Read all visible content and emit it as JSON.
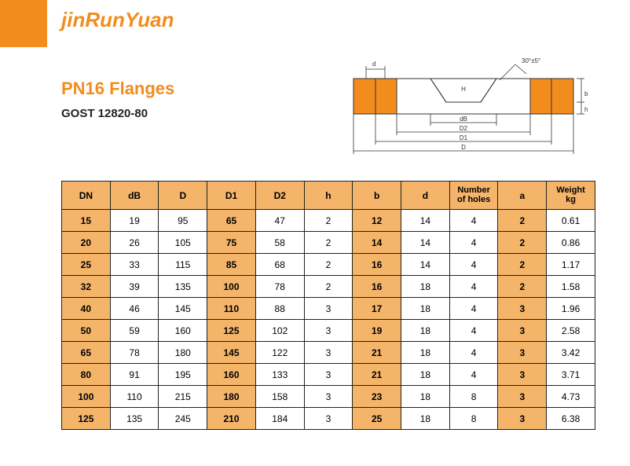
{
  "brand": {
    "logo_text": "jinRunYuan"
  },
  "heading": {
    "title": "PN16 Flanges",
    "subtitle": "GOST 12820-80"
  },
  "colors": {
    "accent": "#f28c1d",
    "header_fill": "#f4b46a",
    "border": "#222222",
    "background": "#ffffff"
  },
  "diagram": {
    "labels": {
      "d_top": "d",
      "angle": "30°±5°",
      "dB": "dB",
      "D2": "D2",
      "D1": "D1",
      "D": "D",
      "H": "H",
      "b": "b",
      "h": "h"
    },
    "flange_fill": "#f28c1d",
    "line_color": "#333333"
  },
  "table": {
    "columns": [
      "DN",
      "dB",
      "D",
      "D1",
      "D2",
      "h",
      "b",
      "d",
      "Number\nof holes",
      "a",
      "Weight\nkg"
    ],
    "shaded_cols": [
      0,
      3,
      6,
      9
    ],
    "rows": [
      [
        "15",
        "19",
        "95",
        "65",
        "47",
        "2",
        "12",
        "14",
        "4",
        "2",
        "0.61"
      ],
      [
        "20",
        "26",
        "105",
        "75",
        "58",
        "2",
        "14",
        "14",
        "4",
        "2",
        "0.86"
      ],
      [
        "25",
        "33",
        "115",
        "85",
        "68",
        "2",
        "16",
        "14",
        "4",
        "2",
        "1.17"
      ],
      [
        "32",
        "39",
        "135",
        "100",
        "78",
        "2",
        "16",
        "18",
        "4",
        "2",
        "1.58"
      ],
      [
        "40",
        "46",
        "145",
        "110",
        "88",
        "3",
        "17",
        "18",
        "4",
        "3",
        "1.96"
      ],
      [
        "50",
        "59",
        "160",
        "125",
        "102",
        "3",
        "19",
        "18",
        "4",
        "3",
        "2.58"
      ],
      [
        "65",
        "78",
        "180",
        "145",
        "122",
        "3",
        "21",
        "18",
        "4",
        "3",
        "3.42"
      ],
      [
        "80",
        "91",
        "195",
        "160",
        "133",
        "3",
        "21",
        "18",
        "4",
        "3",
        "3.71"
      ],
      [
        "100",
        "110",
        "215",
        "180",
        "158",
        "3",
        "23",
        "18",
        "8",
        "3",
        "4.73"
      ],
      [
        "125",
        "135",
        "245",
        "210",
        "184",
        "3",
        "25",
        "18",
        "8",
        "3",
        "6.38"
      ]
    ]
  }
}
